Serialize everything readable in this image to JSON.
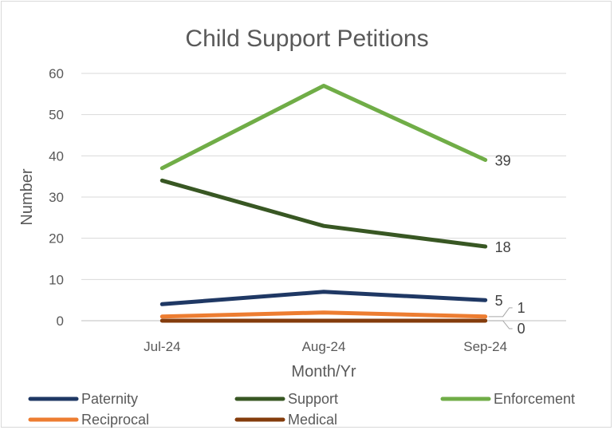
{
  "chart_data": {
    "type": "line",
    "title": "Child Support Petitions",
    "xlabel": "Month/Yr",
    "ylabel": "Number",
    "categories": [
      "Jul-24",
      "Aug-24",
      "Sep-24"
    ],
    "ylim": [
      0,
      60
    ],
    "yticks": [
      0,
      10,
      20,
      30,
      40,
      50,
      60
    ],
    "grid": true,
    "legend_position": "bottom",
    "series": [
      {
        "name": "Paternity",
        "values": [
          4,
          7,
          5
        ],
        "color": "#1f3864",
        "last_label": "5"
      },
      {
        "name": "Support",
        "values": [
          34,
          23,
          18
        ],
        "color": "#385723",
        "last_label": "18"
      },
      {
        "name": "Enforcement",
        "values": [
          37,
          57,
          39
        ],
        "color": "#70ad47",
        "last_label": "39"
      },
      {
        "name": "Reciprocal",
        "values": [
          1,
          2,
          1
        ],
        "color": "#ed7d31",
        "last_label": "1"
      },
      {
        "name": "Medical",
        "values": [
          0,
          0,
          0
        ],
        "color": "#843c0c",
        "last_label": "0"
      }
    ]
  }
}
